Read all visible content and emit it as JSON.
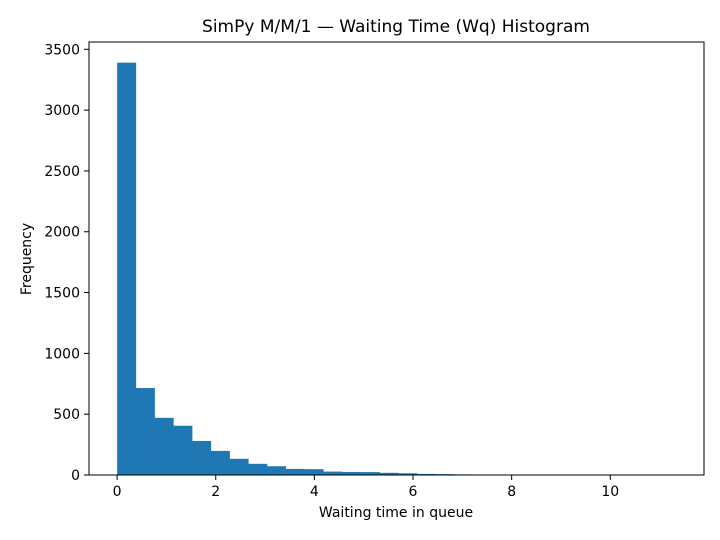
{
  "chart_data": {
    "type": "bar",
    "title": "SimPy M/M/1 — Waiting Time (Wq) Histogram",
    "xlabel": "Waiting time in queue",
    "ylabel": "Frequency",
    "xlim": [
      -0.57,
      11.9
    ],
    "ylim": [
      0,
      3560
    ],
    "xticks": [
      0,
      2,
      4,
      6,
      8,
      10
    ],
    "yticks": [
      0,
      500,
      1000,
      1500,
      2000,
      2500,
      3000,
      3500
    ],
    "bin_edges": [
      0,
      0.38,
      0.76,
      1.14,
      1.52,
      1.9,
      2.28,
      2.66,
      3.04,
      3.42,
      3.8,
      4.18,
      4.56,
      4.94,
      5.32,
      5.7,
      6.08,
      6.46,
      6.84,
      7.22,
      7.6,
      7.98,
      8.36,
      8.74,
      9.12,
      9.5,
      9.88,
      10.26,
      10.64,
      11.02,
      11.4
    ],
    "values": [
      3390,
      715,
      470,
      405,
      280,
      198,
      133,
      92,
      72,
      50,
      48,
      28,
      25,
      24,
      18,
      14,
      9,
      7,
      5,
      4,
      3,
      2,
      2,
      1,
      1,
      1,
      1,
      1,
      1,
      1
    ],
    "color": "#1f77b4"
  }
}
